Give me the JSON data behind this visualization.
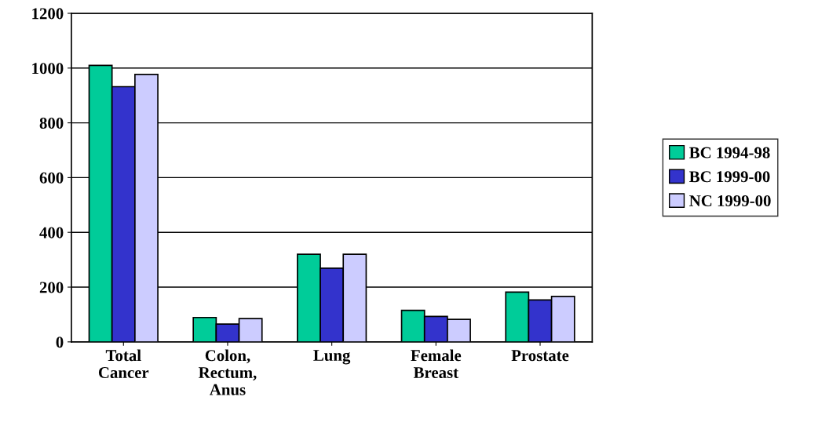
{
  "chart_data": {
    "type": "bar",
    "categories": [
      "Total\nCancer",
      "Colon,\nRectum,\nAnus",
      "Lung",
      "Female\nBreast",
      "Prostate"
    ],
    "series": [
      {
        "name": "BC 1994-98",
        "color": "#00cc99",
        "values": [
          1010,
          89,
          320,
          115,
          182
        ]
      },
      {
        "name": "BC 1999-00",
        "color": "#3333cc",
        "values": [
          932,
          65,
          269,
          93,
          153
        ]
      },
      {
        "name": "NC 1999-00",
        "color": "#ccccff",
        "values": [
          977,
          85,
          320,
          82,
          166
        ]
      }
    ],
    "ylim": [
      0,
      1200
    ],
    "yticks": [
      0,
      200,
      400,
      600,
      800,
      1000,
      1200
    ],
    "grid": "y",
    "legend": "right"
  }
}
